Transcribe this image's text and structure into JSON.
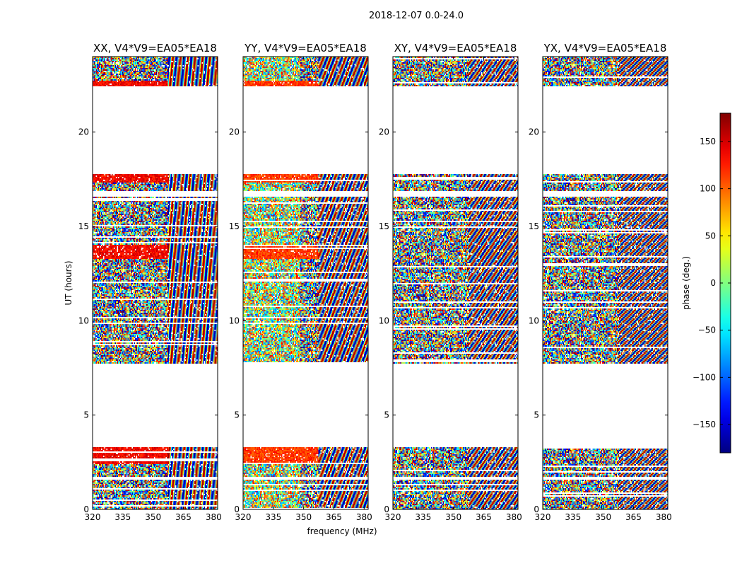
{
  "chart_data": {
    "type": "heatmap",
    "suptitle": "2018-12-07 0.0-24.0",
    "xlabel": "frequency (MHz)",
    "ylabel": "UT (hours)",
    "xlim": [
      320,
      382
    ],
    "ylim": [
      0,
      24
    ],
    "xticks": [
      "320",
      "335",
      "350",
      "365",
      "380"
    ],
    "yticks": [
      "0",
      "5",
      "10",
      "15",
      "20"
    ],
    "panels": [
      {
        "title": "XX, V4*V9=EA05*EA18",
        "pol": "XX"
      },
      {
        "title": "YY, V4*V9=EA05*EA18",
        "pol": "YY"
      },
      {
        "title": "XY, V4*V9=EA05*EA18",
        "pol": "XY"
      },
      {
        "title": "YX, V4*V9=EA05*EA18",
        "pol": "YX"
      }
    ],
    "colorbar": {
      "label": "phase (deg.)",
      "range": [
        -180,
        180
      ],
      "ticks": [
        "150",
        "100",
        "50",
        "0",
        "−50",
        "−100",
        "−150"
      ],
      "colormap": "jet"
    },
    "data_rows_ut": [
      [
        0.0,
        1.6
      ],
      [
        1.7,
        3.3
      ],
      [
        7.7,
        16.6
      ],
      [
        16.9,
        17.8
      ],
      [
        22.4,
        24.0
      ]
    ],
    "blank_gaps_ut": [
      [
        3.3,
        7.6
      ],
      [
        17.8,
        22.4
      ]
    ]
  }
}
